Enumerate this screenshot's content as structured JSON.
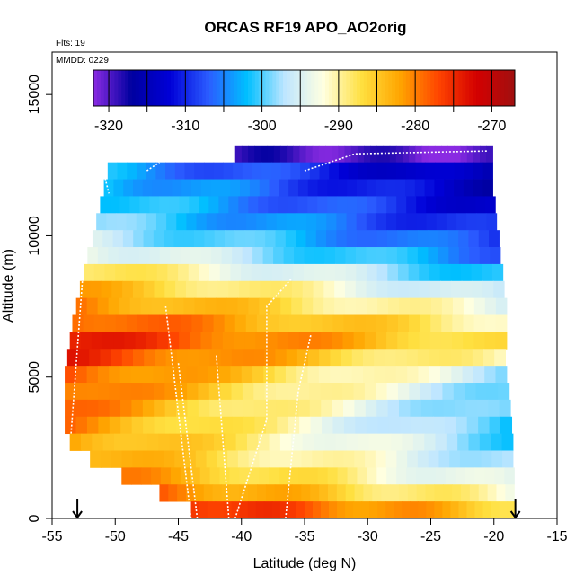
{
  "chart_data": {
    "type": "heatmap",
    "title": "ORCAS RF19 APO_AO2orig",
    "annotations": [
      "Flts: 19",
      "MMDD: 0229"
    ],
    "xlabel": "Latitude (deg N)",
    "ylabel": "Altitude (m)",
    "xlim": [
      -55,
      -15
    ],
    "ylim": [
      0,
      16500
    ],
    "x_ticks": [
      -55,
      -50,
      -45,
      -40,
      -35,
      -30,
      -25,
      -20,
      -15
    ],
    "y_ticks": [
      0,
      5000,
      10000,
      15000
    ],
    "colorbar": {
      "range": [
        -322,
        -267
      ],
      "ticks": [
        -320,
        -310,
        -300,
        -290,
        -280,
        -270
      ],
      "colors": [
        "#8a2be2",
        "#0000a0",
        "#0000d8",
        "#2b5cff",
        "#00bfff",
        "#bfe6ff",
        "#ffffe0",
        "#ffe040",
        "#ffa500",
        "#ff4500",
        "#d40000",
        "#a01010"
      ]
    },
    "end_markers_lat": [
      -53,
      -18.3
    ],
    "rows": [
      {
        "alt": 12900,
        "lat0": -40.5,
        "lat1": -20.1,
        "v0": -319,
        "v1": -321
      },
      {
        "alt": 12300,
        "lat0": -50.6,
        "lat1": -20.1,
        "v0": -303,
        "v1": -316
      },
      {
        "alt": 11700,
        "lat0": -50.9,
        "lat1": -20.1,
        "v0": -301,
        "v1": -315
      },
      {
        "alt": 11100,
        "lat0": -51.2,
        "lat1": -19.9,
        "v0": -300,
        "v1": -313
      },
      {
        "alt": 10500,
        "lat0": -51.5,
        "lat1": -19.8,
        "v0": -299,
        "v1": -311
      },
      {
        "alt": 9900,
        "lat0": -51.8,
        "lat1": -19.6,
        "v0": -296,
        "v1": -309
      },
      {
        "alt": 9300,
        "lat0": -52.2,
        "lat1": -19.5,
        "v0": -292,
        "v1": -306
      },
      {
        "alt": 8700,
        "lat0": -52.5,
        "lat1": -19.3,
        "v0": -287,
        "v1": -302
      },
      {
        "alt": 8100,
        "lat0": -52.8,
        "lat1": -19.2,
        "v0": -283,
        "v1": -298
      },
      {
        "alt": 7500,
        "lat0": -53.1,
        "lat1": -19.0,
        "v0": -280,
        "v1": -294
      },
      {
        "alt": 6900,
        "lat0": -53.4,
        "lat1": -19.0,
        "v0": -277,
        "v1": -290
      },
      {
        "alt": 6300,
        "lat0": -53.6,
        "lat1": -19.0,
        "v0": -274,
        "v1": -288
      },
      {
        "alt": 5700,
        "lat0": -53.8,
        "lat1": -19.1,
        "v0": -275,
        "v1": -292
      },
      {
        "alt": 5100,
        "lat0": -54.0,
        "lat1": -19.0,
        "v0": -277,
        "v1": -297
      },
      {
        "alt": 4500,
        "lat0": -54.0,
        "lat1": -18.8,
        "v0": -278,
        "v1": -299
      },
      {
        "alt": 3900,
        "lat0": -54.0,
        "lat1": -18.7,
        "v0": -279,
        "v1": -301
      },
      {
        "alt": 3300,
        "lat0": -54.0,
        "lat1": -18.6,
        "v0": -280,
        "v1": -302
      },
      {
        "alt": 2700,
        "lat0": -53.6,
        "lat1": -18.5,
        "v0": -281,
        "v1": -300
      },
      {
        "alt": 2100,
        "lat0": -52.0,
        "lat1": -18.5,
        "v0": -282,
        "v1": -298
      },
      {
        "alt": 1500,
        "lat0": -49.5,
        "lat1": -18.4,
        "v0": -281,
        "v1": -296
      },
      {
        "alt": 900,
        "lat0": -46.5,
        "lat1": -18.4,
        "v0": -279,
        "v1": -292
      },
      {
        "alt": 300,
        "lat0": -44.0,
        "lat1": -18.3,
        "v0": -274,
        "v1": -286
      }
    ]
  }
}
